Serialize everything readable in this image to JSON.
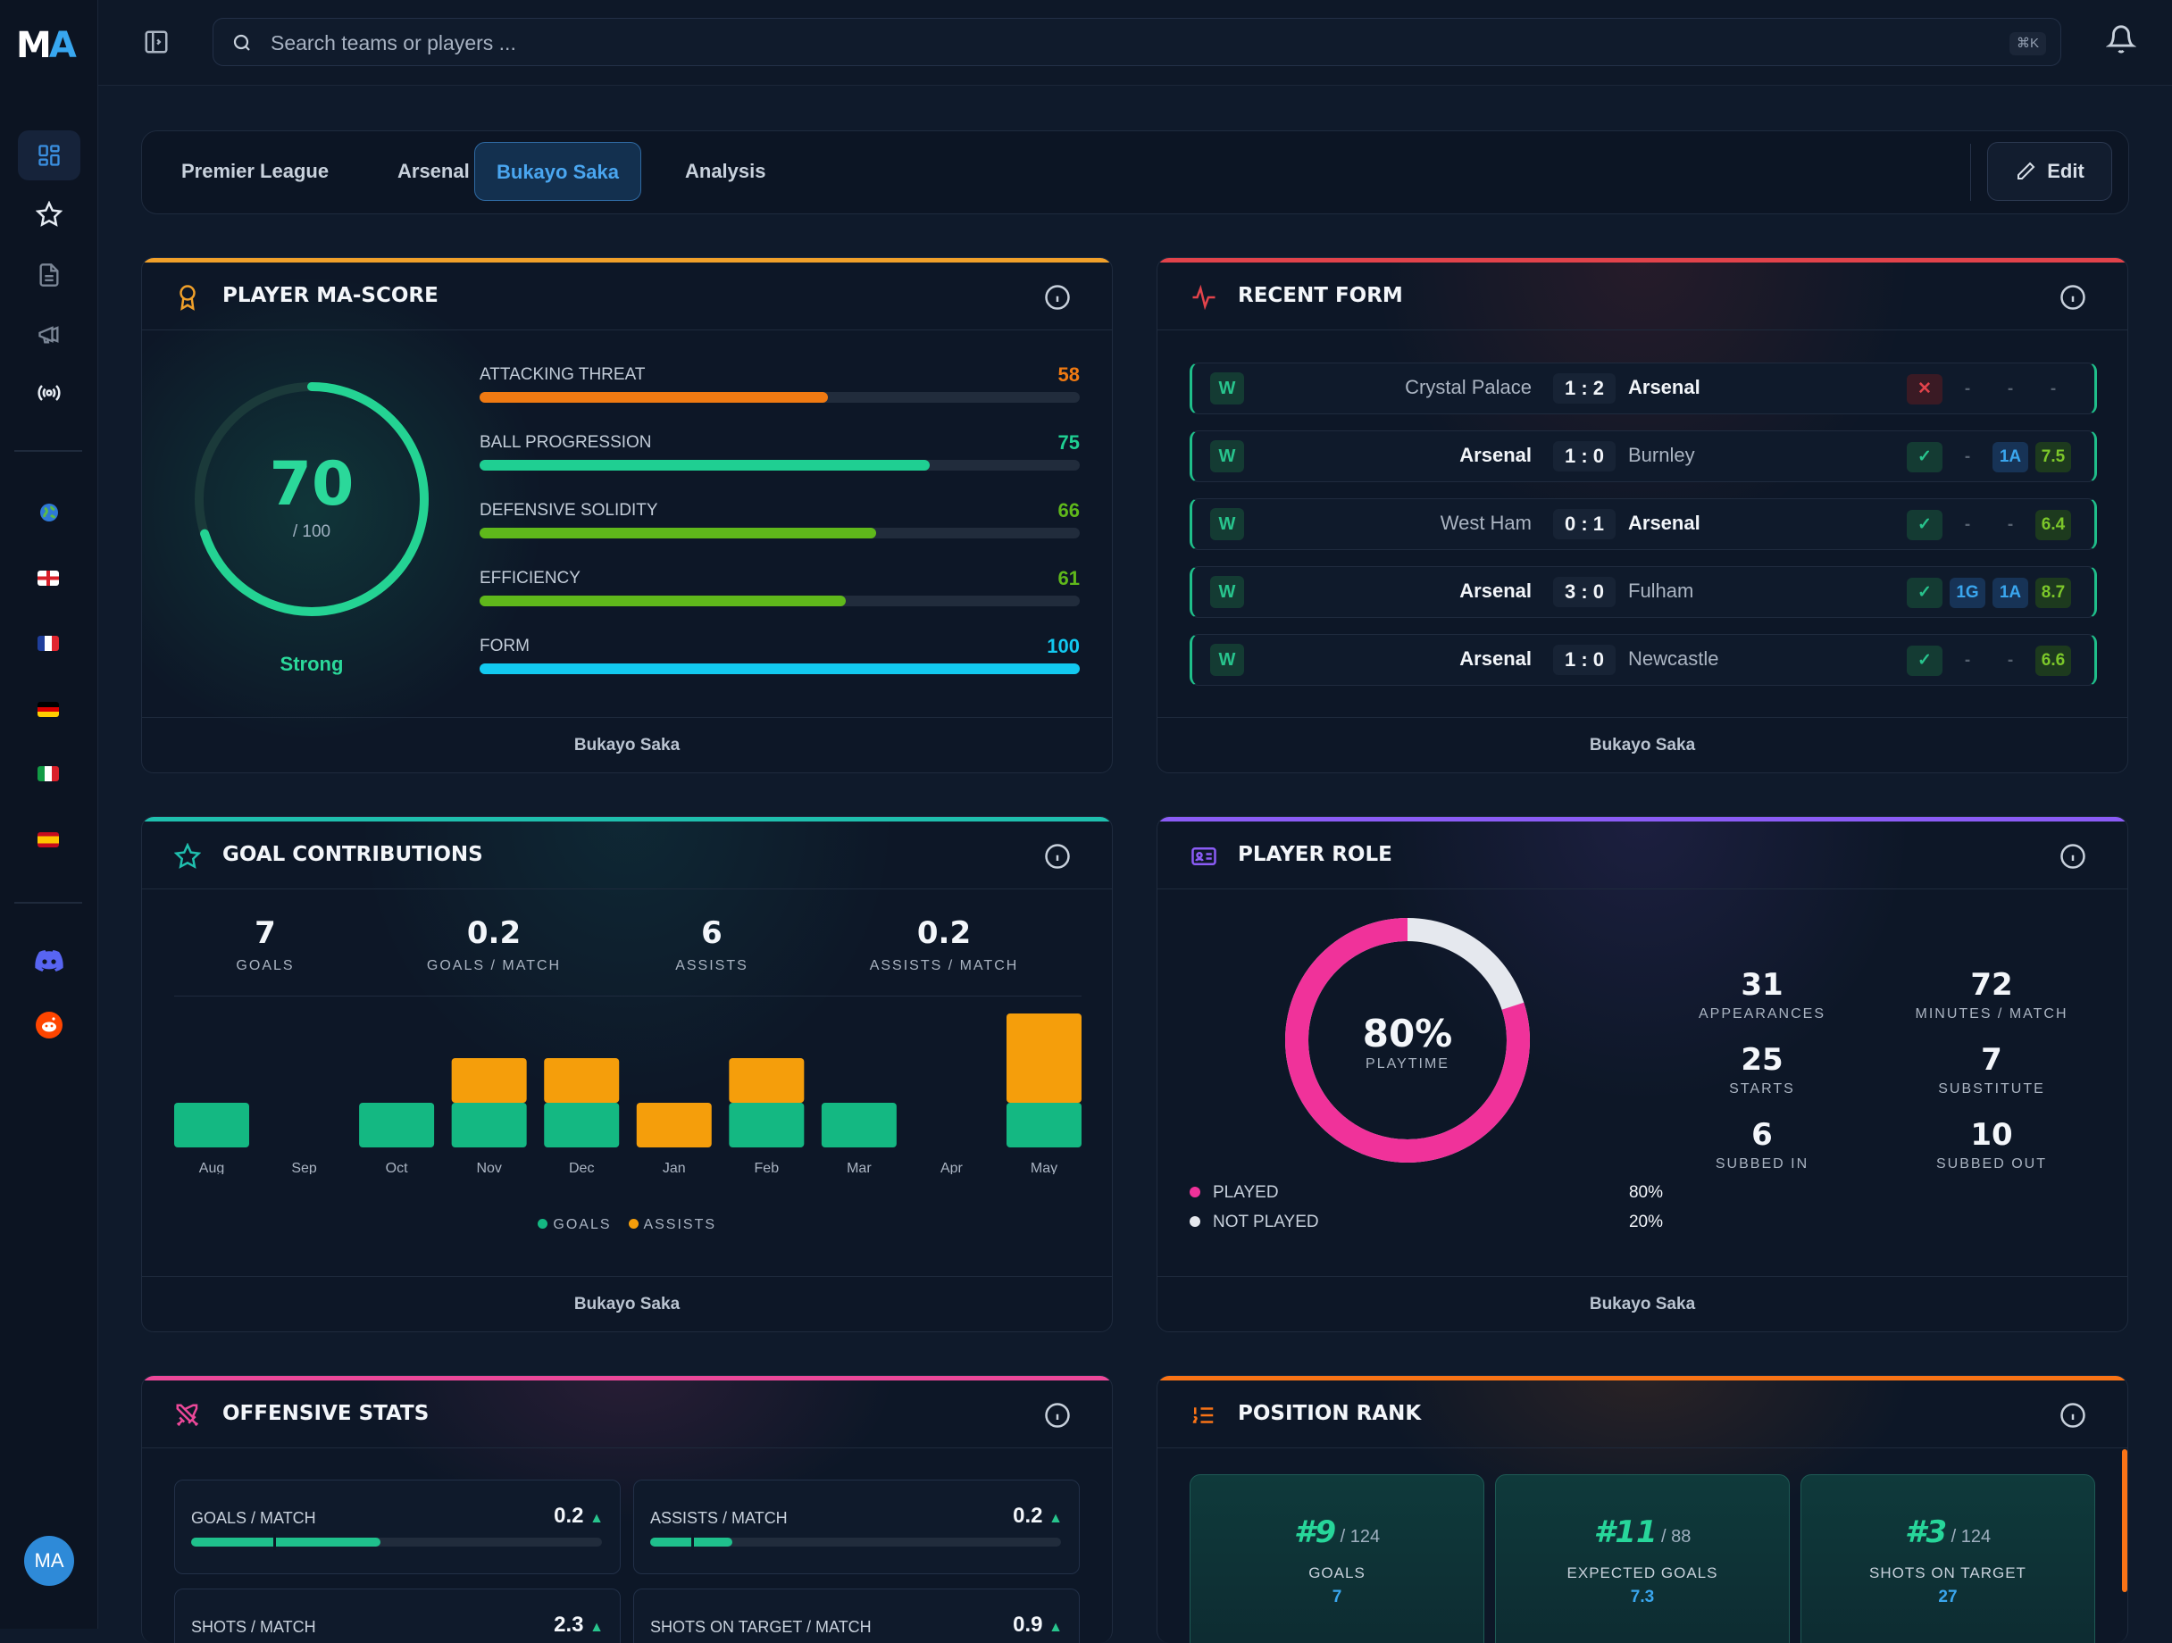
{
  "app": {
    "logo_m": "M",
    "logo_a": "A"
  },
  "topbar": {
    "search_placeholder": "Search teams or players ...",
    "shortcut": "⌘K"
  },
  "breadcrumbs": [
    "Premier League",
    "Arsenal",
    "Bukayo Saka",
    "Analysis"
  ],
  "edit_label": "Edit",
  "user": {
    "initials": "MA"
  },
  "ma_score": {
    "title": "Player MA-Score",
    "score": "70",
    "max": "/ 100",
    "score_value": 70,
    "rating": "Strong",
    "footer": "Bukayo Saka",
    "metrics": [
      {
        "label": "ATTACKING THREAT",
        "value": "58",
        "pct": 58,
        "color": "#f07a12"
      },
      {
        "label": "BALL PROGRESSION",
        "value": "75",
        "pct": 75,
        "color": "#1fcf92"
      },
      {
        "label": "DEFENSIVE SOLIDITY",
        "value": "66",
        "pct": 66,
        "color": "#5fb81b"
      },
      {
        "label": "EFFICIENCY",
        "value": "61",
        "pct": 61,
        "color": "#5fb81b"
      },
      {
        "label": "FORM",
        "value": "100",
        "pct": 100,
        "color": "#12c9f0"
      }
    ]
  },
  "recent_form": {
    "title": "Recent Form",
    "footer": "Bukayo Saka",
    "matches": [
      {
        "result": "W",
        "home": "Crystal Palace",
        "score": "1 : 2",
        "away": "Arsenal",
        "home_bold": false,
        "started": "✕",
        "g": "-",
        "a": "-",
        "rating": "-"
      },
      {
        "result": "W",
        "home": "Arsenal",
        "score": "1 : 0",
        "away": "Burnley",
        "home_bold": true,
        "started": "✓",
        "g": "-",
        "a": "1A",
        "rating": "7.5"
      },
      {
        "result": "W",
        "home": "West Ham",
        "score": "0 : 1",
        "away": "Arsenal",
        "home_bold": false,
        "started": "✓",
        "g": "-",
        "a": "-",
        "rating": "6.4"
      },
      {
        "result": "W",
        "home": "Arsenal",
        "score": "3 : 0",
        "away": "Fulham",
        "home_bold": true,
        "started": "✓",
        "g": "1G",
        "a": "1A",
        "rating": "8.7"
      },
      {
        "result": "W",
        "home": "Arsenal",
        "score": "1 : 0",
        "away": "Newcastle",
        "home_bold": true,
        "started": "✓",
        "g": "-",
        "a": "-",
        "rating": "6.6"
      }
    ]
  },
  "goal_contributions": {
    "title": "Goal Contributions",
    "footer": "Bukayo Saka",
    "stats": [
      {
        "value": "7",
        "label": "GOALS"
      },
      {
        "value": "0.2",
        "label": "GOALS / MATCH"
      },
      {
        "value": "6",
        "label": "ASSISTS"
      },
      {
        "value": "0.2",
        "label": "ASSISTS / MATCH"
      }
    ],
    "legend": [
      "GOALS",
      "ASSISTS"
    ]
  },
  "chart_data": {
    "type": "bar",
    "stacked": true,
    "categories": [
      "Aug",
      "Sep",
      "Oct",
      "Nov",
      "Dec",
      "Jan",
      "Feb",
      "Mar",
      "Apr",
      "May"
    ],
    "series": [
      {
        "name": "GOALS",
        "color": "#14b882",
        "values": [
          1,
          0,
          1,
          1,
          1,
          0,
          1,
          1,
          0,
          1
        ]
      },
      {
        "name": "ASSISTS",
        "color": "#f59e0b",
        "values": [
          0,
          0,
          0,
          1,
          1,
          1,
          1,
          0,
          0,
          2
        ]
      }
    ],
    "ylim": [
      0,
      3
    ]
  },
  "player_role": {
    "title": "Player Role",
    "footer": "Bukayo Saka",
    "playtime": "80%",
    "playtime_label": "PLAYTIME",
    "played_fraction": 0.8,
    "legend": [
      {
        "label": "PLAYED",
        "value": "80%",
        "color": "#f0329a"
      },
      {
        "label": "NOT PLAYED",
        "value": "20%",
        "color": "#e5e8ee"
      }
    ],
    "stats": [
      {
        "value": "31",
        "label": "APPEARANCES"
      },
      {
        "value": "72",
        "label": "MINUTES / MATCH"
      },
      {
        "value": "25",
        "label": "STARTS"
      },
      {
        "value": "7",
        "label": "SUBSTITUTE"
      },
      {
        "value": "6",
        "label": "SUBBED IN"
      },
      {
        "value": "10",
        "label": "SUBBED OUT"
      }
    ]
  },
  "offensive": {
    "title": "Offensive Stats",
    "items": [
      {
        "label": "GOALS / MATCH",
        "value": "0.2",
        "fill": 0.46,
        "marker": 0.2
      },
      {
        "label": "ASSISTS / MATCH",
        "value": "0.2",
        "fill": 0.2,
        "marker": 0.1
      },
      {
        "label": "SHOTS / MATCH",
        "value": "2.3"
      },
      {
        "label": "SHOTS ON TARGET / MATCH",
        "value": "0.9"
      }
    ]
  },
  "position_rank": {
    "title": "Position Rank",
    "ranks": [
      {
        "rank": "#9",
        "of": "/ 124",
        "label": "GOALS",
        "value": "7"
      },
      {
        "rank": "#11",
        "of": "/ 88",
        "label": "EXPECTED GOALS",
        "value": "7.3"
      },
      {
        "rank": "#3",
        "of": "/ 124",
        "label": "SHOTS ON TARGET",
        "value": "27"
      }
    ]
  }
}
